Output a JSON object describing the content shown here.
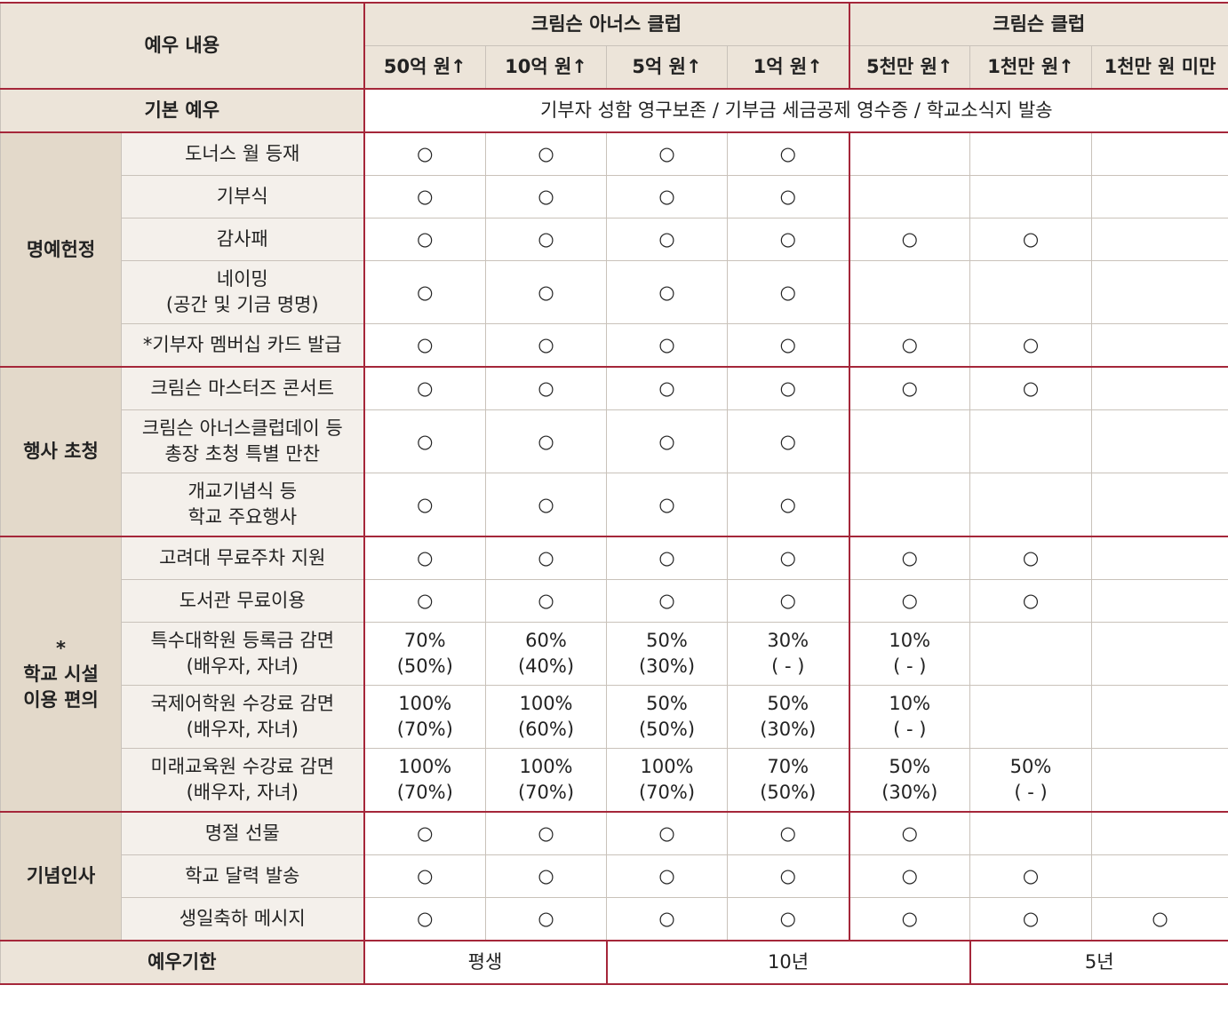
{
  "header": {
    "label": "예우 내용",
    "groups": [
      {
        "label": "크림슨 아너스 클럽",
        "tiers": [
          "50억 원↑",
          "10억 원↑",
          "5억 원↑",
          "1억 원↑"
        ]
      },
      {
        "label": "크림슨 클럽",
        "tiers": [
          "5천만 원↑",
          "1천만 원↑",
          "1천만 원 미만"
        ]
      }
    ]
  },
  "basic": {
    "label": "기본 예우",
    "text": "기부자 성함 영구보존 / 기부금 세금공제 영수증 / 학교소식지 발송"
  },
  "sections": [
    {
      "label": "명예헌정",
      "rows": [
        {
          "label": "도너스 월 등재",
          "cells": [
            "○",
            "○",
            "○",
            "○",
            null,
            null,
            null
          ]
        },
        {
          "label": "기부식",
          "cells": [
            "○",
            "○",
            "○",
            "○",
            null,
            null,
            null
          ]
        },
        {
          "label": "감사패",
          "cells": [
            "○",
            "○",
            "○",
            "○",
            "○",
            "○",
            null
          ]
        },
        {
          "label": "네이밍\n(공간 및 기금 명명)",
          "cells": [
            "○",
            "○",
            "○",
            "○",
            null,
            null,
            null
          ]
        },
        {
          "label": "*기부자 멤버십 카드 발급",
          "cells": [
            "○",
            "○",
            "○",
            "○",
            "○",
            "○",
            null
          ]
        }
      ]
    },
    {
      "label": "행사 초청",
      "rows": [
        {
          "label": "크림슨 마스터즈 콘서트",
          "cells": [
            "○",
            "○",
            "○",
            "○",
            "○",
            "○",
            null
          ]
        },
        {
          "label": "크림슨 아너스클럽데이 등\n총장 초청 특별 만찬",
          "cells": [
            "○",
            "○",
            "○",
            "○",
            null,
            null,
            null
          ]
        },
        {
          "label": "개교기념식 등\n학교 주요행사",
          "cells": [
            "○",
            "○",
            "○",
            "○",
            null,
            null,
            null
          ]
        }
      ]
    },
    {
      "label": "*\n학교 시설\n이용 편의",
      "rows": [
        {
          "label": "고려대 무료주차 지원",
          "cells": [
            "○",
            "○",
            "○",
            "○",
            "○",
            "○",
            null
          ]
        },
        {
          "label": "도서관 무료이용",
          "cells": [
            "○",
            "○",
            "○",
            "○",
            "○",
            "○",
            null
          ]
        },
        {
          "label": "특수대학원 등록금 감면\n(배우자, 자녀)",
          "cells": [
            "70%\n(50%)",
            "60%\n(40%)",
            "50%\n(30%)",
            "30%\n( - )",
            "10%\n( - )",
            null,
            null
          ]
        },
        {
          "label": "국제어학원 수강료 감면\n(배우자, 자녀)",
          "cells": [
            "100%\n(70%)",
            "100%\n(60%)",
            "50%\n(50%)",
            "50%\n(30%)",
            "10%\n( - )",
            null,
            null
          ]
        },
        {
          "label": "미래교육원 수강료 감면\n(배우자, 자녀)",
          "cells": [
            "100%\n(70%)",
            "100%\n(70%)",
            "100%\n(70%)",
            "70%\n(50%)",
            "50%\n(30%)",
            "50%\n( - )",
            null
          ]
        }
      ]
    },
    {
      "label": "기념인사",
      "rows": [
        {
          "label": "명절 선물",
          "cells": [
            "○",
            "○",
            "○",
            "○",
            "○",
            null,
            null
          ]
        },
        {
          "label": "학교 달력 발송",
          "cells": [
            "○",
            "○",
            "○",
            "○",
            "○",
            "○",
            null
          ]
        },
        {
          "label": "생일축하 메시지",
          "cells": [
            "○",
            "○",
            "○",
            "○",
            "○",
            "○",
            "○"
          ]
        }
      ]
    }
  ],
  "period": {
    "label": "예우기한",
    "cells": [
      "평생",
      "10년",
      "5년"
    ]
  }
}
